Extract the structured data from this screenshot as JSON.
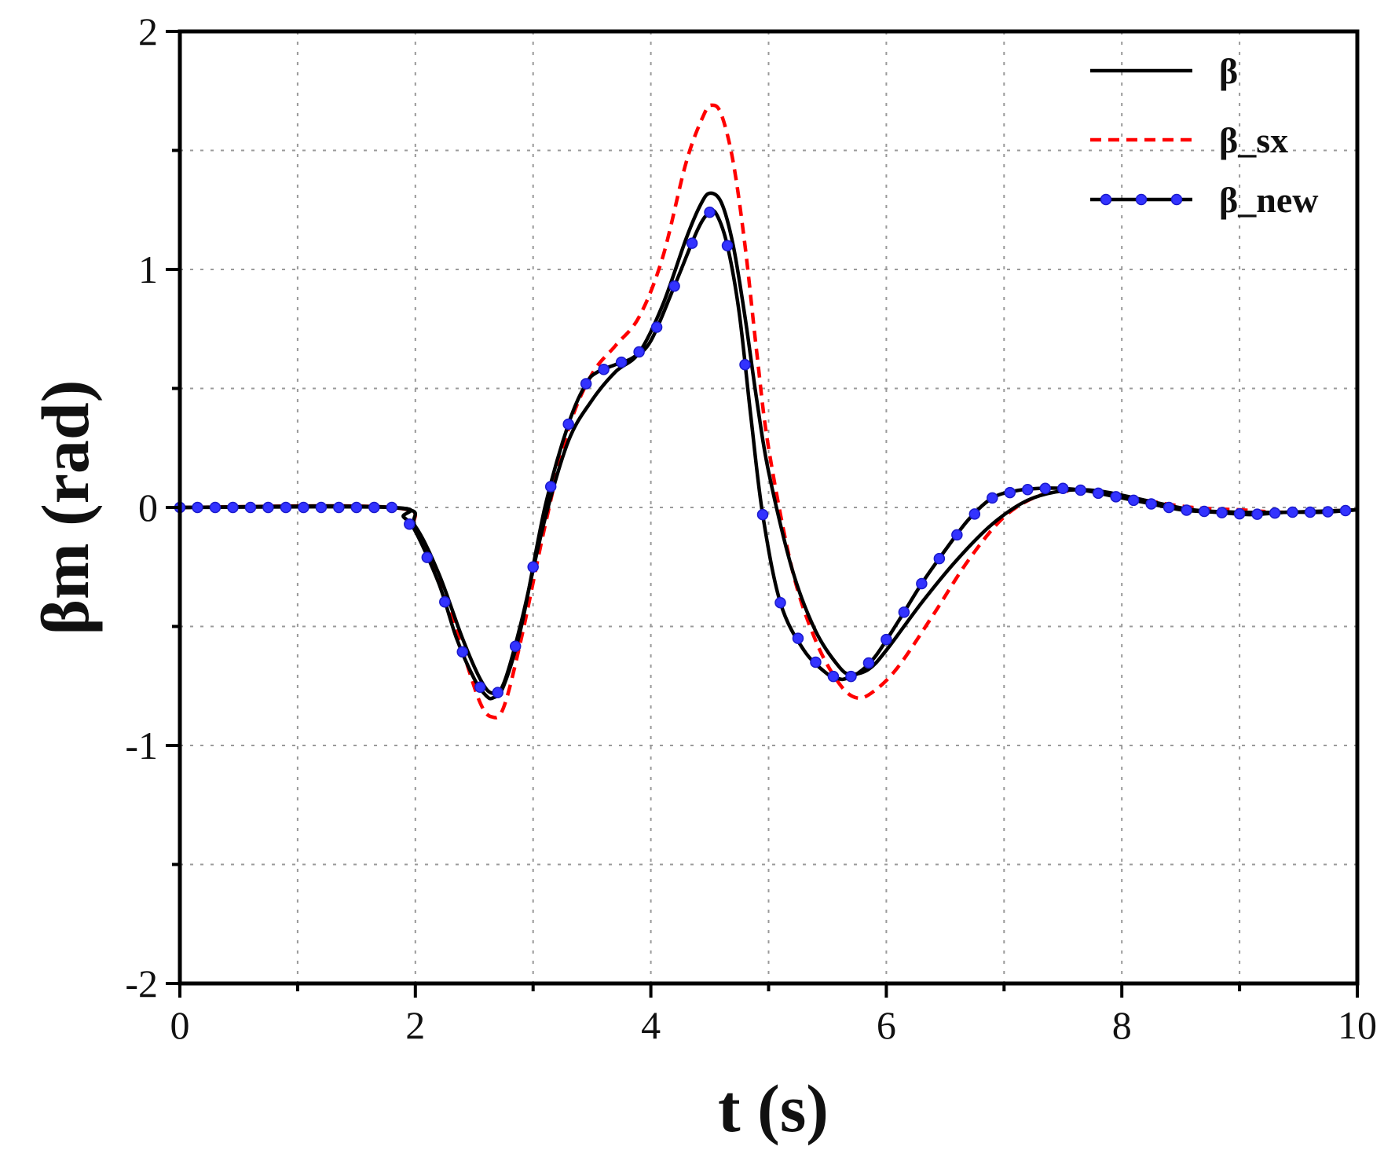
{
  "chart_data": {
    "type": "line",
    "xlabel": "t (s)",
    "ylabel": "βm (rad)",
    "xlim": [
      0,
      10
    ],
    "ylim": [
      -2,
      2
    ],
    "x_ticks": [
      0,
      2,
      4,
      6,
      8,
      10
    ],
    "x_tick_labels": [
      "0",
      "2",
      "4",
      "6",
      "8",
      "10"
    ],
    "y_ticks": [
      -2,
      -1,
      0,
      1,
      2
    ],
    "y_tick_labels": [
      "-2",
      "-1",
      "0",
      "1",
      "2"
    ],
    "grid": true,
    "legend_position": "top-right",
    "series": [
      {
        "name": "β",
        "color": "#000000",
        "style": "solid",
        "x": [
          0,
          1.8,
          2.0,
          2.2,
          2.4,
          2.55,
          2.65,
          2.75,
          2.9,
          3.1,
          3.3,
          3.5,
          3.7,
          3.9,
          4.1,
          4.3,
          4.42,
          4.5,
          4.6,
          4.7,
          4.8,
          4.9,
          5.0,
          5.2,
          5.4,
          5.6,
          5.7,
          5.85,
          6.0,
          6.3,
          6.6,
          6.9,
          7.2,
          7.5,
          7.8,
          8.2,
          8.6,
          9.0,
          9.4,
          10.0
        ],
        "y": [
          0,
          0,
          -0.08,
          -0.28,
          -0.55,
          -0.72,
          -0.78,
          -0.74,
          -0.48,
          -0.05,
          0.28,
          0.45,
          0.57,
          0.65,
          0.85,
          1.13,
          1.27,
          1.32,
          1.28,
          1.1,
          0.8,
          0.45,
          0.15,
          -0.26,
          -0.52,
          -0.67,
          -0.7,
          -0.68,
          -0.6,
          -0.4,
          -0.22,
          -0.07,
          0.03,
          0.07,
          0.07,
          0.03,
          -0.01,
          -0.02,
          -0.02,
          -0.01
        ]
      },
      {
        "name": "β_sx",
        "color": "#ff0000",
        "style": "dashed",
        "x": [
          0,
          1.8,
          2.0,
          2.2,
          2.4,
          2.55,
          2.65,
          2.75,
          2.9,
          3.1,
          3.3,
          3.5,
          3.7,
          3.9,
          4.1,
          4.3,
          4.45,
          4.52,
          4.6,
          4.7,
          4.8,
          4.9,
          5.0,
          5.2,
          5.4,
          5.6,
          5.75,
          5.9,
          6.1,
          6.4,
          6.7,
          7.0,
          7.3,
          7.6,
          7.9,
          8.2,
          8.6,
          9.0,
          9.4,
          10.0
        ],
        "y": [
          0,
          0,
          -0.09,
          -0.3,
          -0.6,
          -0.82,
          -0.88,
          -0.84,
          -0.55,
          -0.08,
          0.33,
          0.56,
          0.68,
          0.8,
          1.05,
          1.45,
          1.65,
          1.69,
          1.65,
          1.45,
          1.1,
          0.65,
          0.25,
          -0.26,
          -0.56,
          -0.74,
          -0.8,
          -0.77,
          -0.67,
          -0.45,
          -0.22,
          -0.04,
          0.05,
          0.07,
          0.06,
          0.03,
          0.0,
          -0.01,
          -0.02,
          -0.01
        ]
      },
      {
        "name": "β_new",
        "color": "#000000",
        "marker_color": "#3333ff",
        "style": "solid",
        "markers": true,
        "x": [
          0,
          1.8,
          1.9,
          2.0,
          2.2,
          2.35,
          2.5,
          2.6,
          2.66,
          2.75,
          2.9,
          3.1,
          3.3,
          3.45,
          3.55,
          3.7,
          3.85,
          4.0,
          4.2,
          4.4,
          4.5,
          4.56,
          4.65,
          4.75,
          4.85,
          4.95,
          5.1,
          5.3,
          5.5,
          5.6,
          5.65,
          5.75,
          5.9,
          6.1,
          6.3,
          6.5,
          6.7,
          6.9,
          7.1,
          7.3,
          7.5,
          7.7,
          7.9,
          8.2,
          8.5,
          8.8,
          9.1,
          9.4,
          9.7,
          10.0
        ],
        "y": [
          0,
          0,
          -0.04,
          -0.1,
          -0.32,
          -0.55,
          -0.72,
          -0.79,
          -0.8,
          -0.75,
          -0.5,
          0.0,
          0.35,
          0.52,
          0.57,
          0.6,
          0.63,
          0.7,
          0.93,
          1.17,
          1.24,
          1.23,
          1.1,
          0.82,
          0.38,
          -0.03,
          -0.4,
          -0.6,
          -0.7,
          -0.72,
          -0.72,
          -0.7,
          -0.63,
          -0.48,
          -0.32,
          -0.18,
          -0.05,
          0.04,
          0.07,
          0.08,
          0.08,
          0.07,
          0.05,
          0.02,
          -0.01,
          -0.02,
          -0.03,
          -0.02,
          -0.02,
          -0.01
        ]
      }
    ]
  }
}
